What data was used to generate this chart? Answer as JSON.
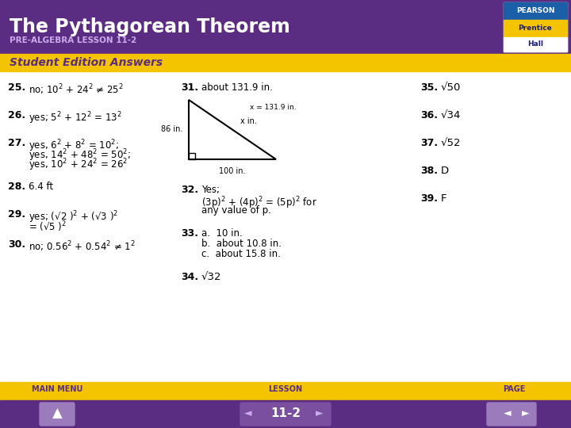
{
  "title": "The Pythagorean Theorem",
  "subtitle": "PRE-ALGEBRA LESSON 11-2",
  "section_label": "Student Edition Answers",
  "header_bg": "#5b2d82",
  "section_bg": "#f5c400",
  "body_bg": "#ffffff",
  "footer_bg": "#f5c400",
  "footer_purple": "#5b2d82",
  "title_color": "#ffffff",
  "subtitle_color": "#d4b0f0",
  "section_color": "#5b2d82",
  "body_color": "#000000",
  "col1_items": [
    {
      "num": "25.",
      "text": "no; 10$^2$ + 24$^2$ ≠ 25$^2$"
    },
    {
      "num": "26.",
      "text": "yes; 5$^2$ + 12$^2$ = 13$^2$"
    },
    {
      "num": "27.",
      "text": "yes, 6$^2$ + 8$^2$ = 10$^2$;\n     yes, 14$^2$ + 48$^2$ = 50$^2$;\n     yes, 10$^2$ + 24$^2$ = 26$^2$"
    },
    {
      "num": "28.",
      "text": "6.4 ft"
    },
    {
      "num": "29.",
      "text": "yes; (√2 )$^2$ + (√3 )$^2$\n     = (√5 )$^2$"
    },
    {
      "num": "30.",
      "text": "no; 0.56$^2$ + 0.54$^2$ ≠ 1$^2$"
    }
  ],
  "col2_items": [
    {
      "num": "31.",
      "text": "about 131.9 in."
    },
    {
      "num": "32.",
      "text": "Yes;\n(3p)$^2$ + (4p)$^2$ = (5p)$^2$ for\nany value of p."
    },
    {
      "num": "33.",
      "text": "a.  10 in.\nb.  about 10.8 in.\nc.  about 15.8 in."
    },
    {
      "num": "34.",
      "text": "√32"
    }
  ],
  "col3_items": [
    {
      "num": "35.",
      "text": "√50"
    },
    {
      "num": "36.",
      "text": "√34"
    },
    {
      "num": "37.",
      "text": "√52"
    },
    {
      "num": "38.",
      "text": "D"
    },
    {
      "num": "39.",
      "text": "F"
    }
  ],
  "footer_labels": [
    "MAIN MENU",
    "LESSON",
    "PAGE"
  ],
  "lesson_num": "11-2",
  "pearson_box_color": "#2060a0"
}
